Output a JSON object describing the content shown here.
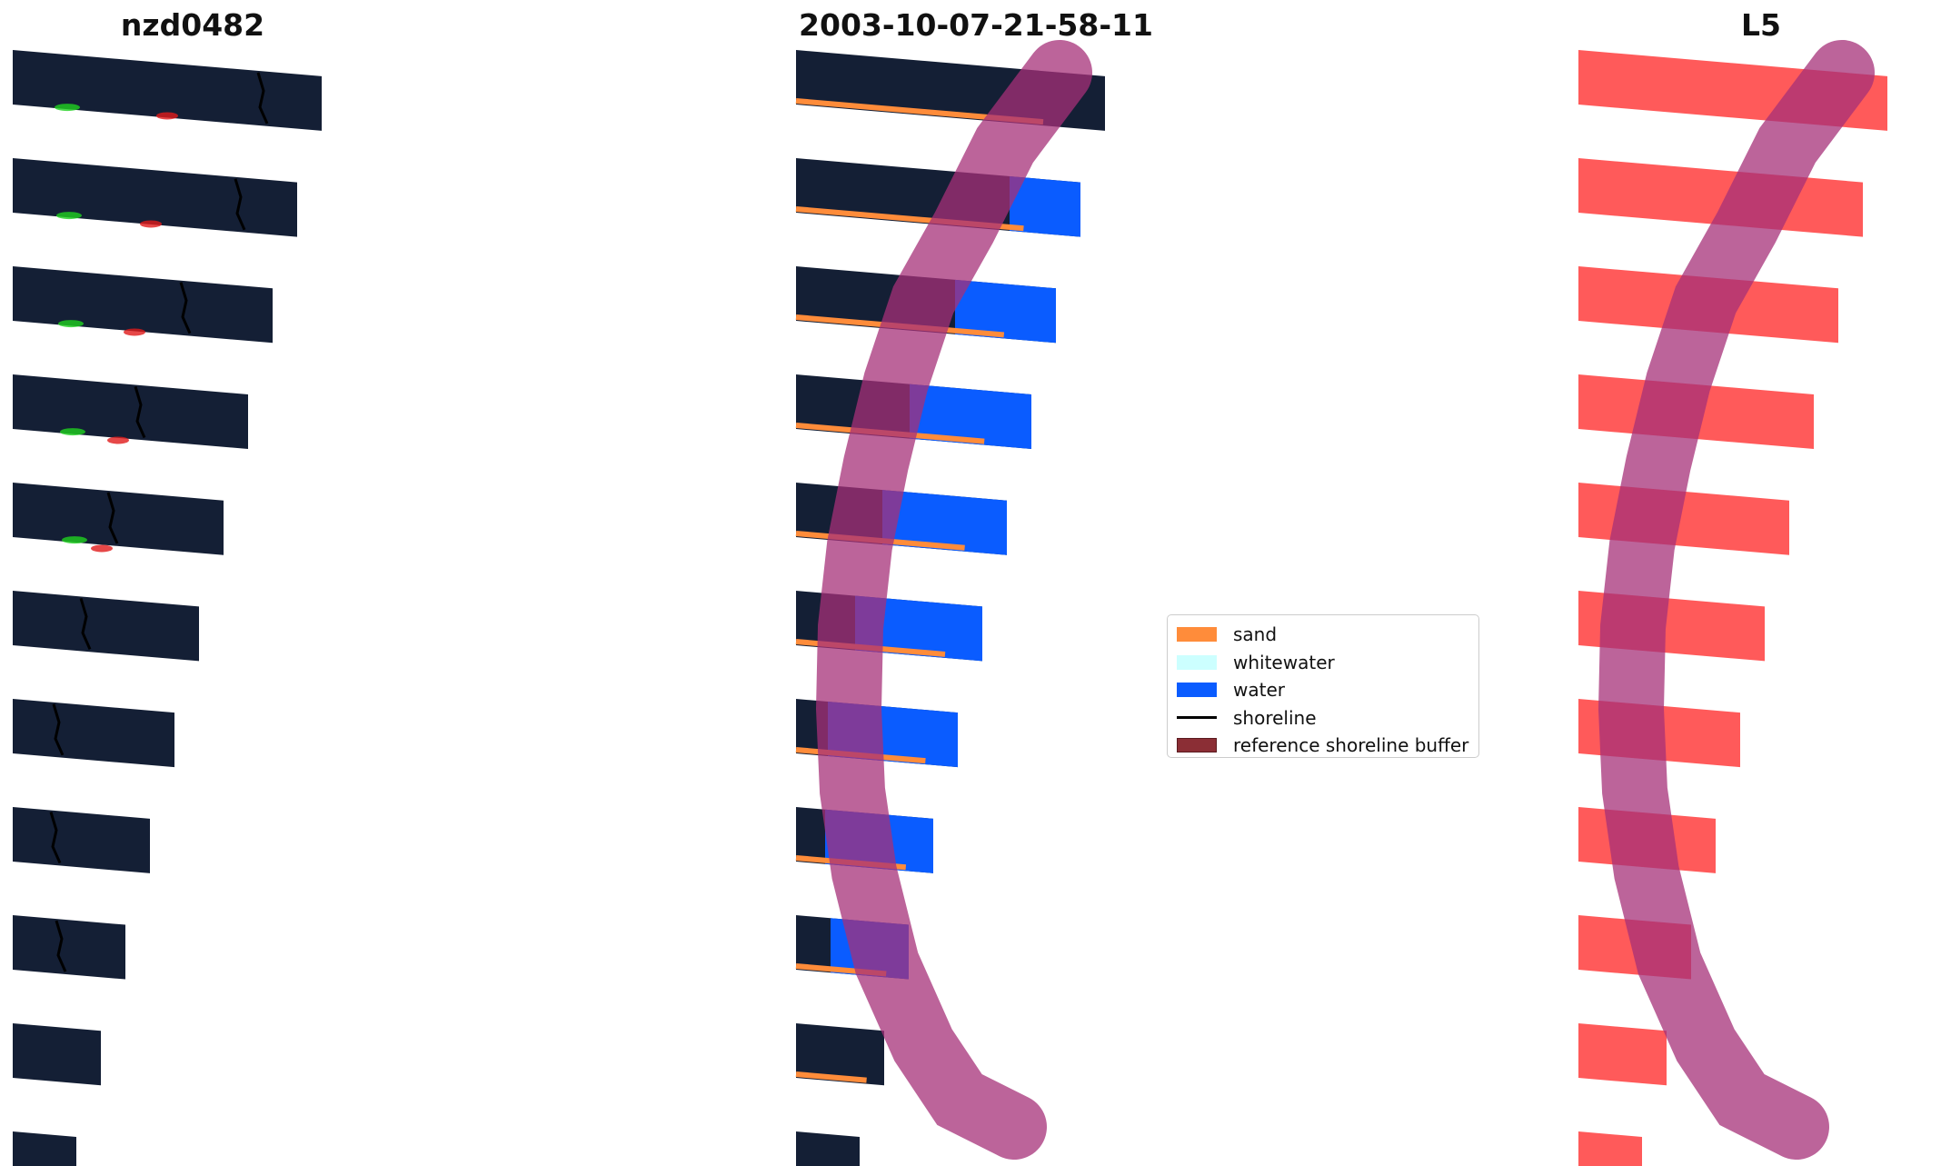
{
  "panels": [
    {
      "title": "nzd0482"
    },
    {
      "title": "2003-10-07-21-58-11"
    },
    {
      "title": "L5"
    }
  ],
  "legend": {
    "items": [
      {
        "label": "sand",
        "color": "#ff8c3a",
        "kind": "patch"
      },
      {
        "label": "whitewater",
        "color": "#ccffff",
        "kind": "patch"
      },
      {
        "label": "water",
        "color": "#0a5cff",
        "kind": "patch"
      },
      {
        "label": "shoreline",
        "color": "#000000",
        "kind": "line"
      },
      {
        "label": "reference shoreline buffer",
        "color": "#8b2e35",
        "kind": "patch"
      }
    ]
  },
  "colors": {
    "imagery": "#141f35",
    "sand": "#ff8c3a",
    "water": "#0a5cff",
    "buffer": "#a63078",
    "mask": "#ff5a5a"
  }
}
